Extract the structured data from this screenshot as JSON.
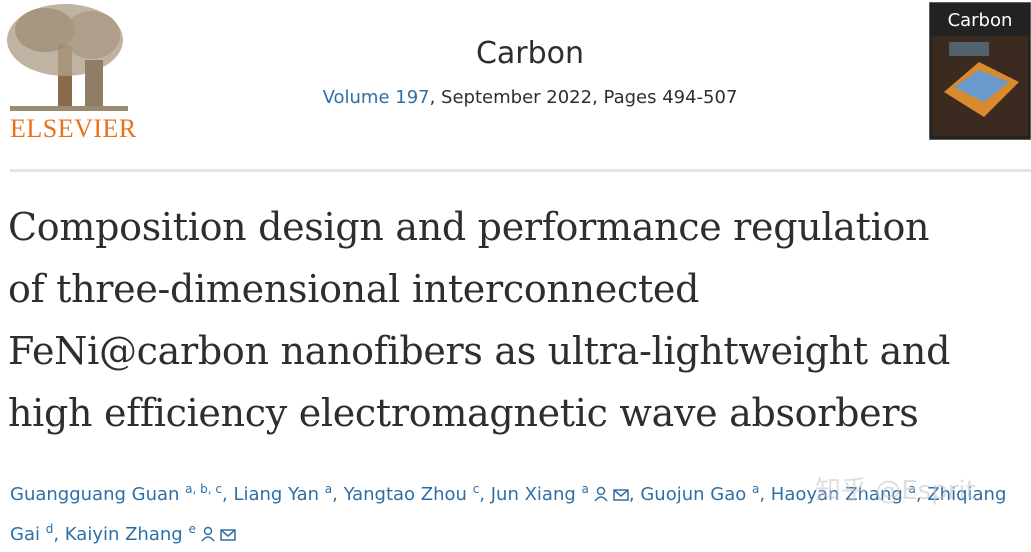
{
  "header": {
    "publisher": "ELSEVIER",
    "journal": "Carbon",
    "volume": "Volume 197",
    "issue_info": ", September 2022, Pages 494-507",
    "cover": {
      "journal": "Carbon"
    }
  },
  "article": {
    "title_lines": [
      "Composition design and performance regulation",
      "of three-dimensional interconnected",
      "FeNi@carbon nanofibers as ultra-lightweight and",
      "high efficiency electromagnetic wave absorbers"
    ],
    "separator": ", ",
    "authors": [
      {
        "name": "Guangguang Guan",
        "sup": "a, b, c"
      },
      {
        "name": "Liang Yan",
        "sup": "a"
      },
      {
        "name": "Yangtao Zhou",
        "sup": "c"
      },
      {
        "name": "Jun Xiang",
        "sup": "a",
        "contact": true
      },
      {
        "name": "Guojun Gao",
        "sup": "a"
      },
      {
        "name": "Haoyan Zhang",
        "sup": "a"
      },
      {
        "name": "Zhiqiang Gai",
        "sup": "d"
      },
      {
        "name": "Kaiyin Zhang",
        "sup": "e",
        "contact": true
      }
    ]
  },
  "watermark": "知乎 @Esprit"
}
